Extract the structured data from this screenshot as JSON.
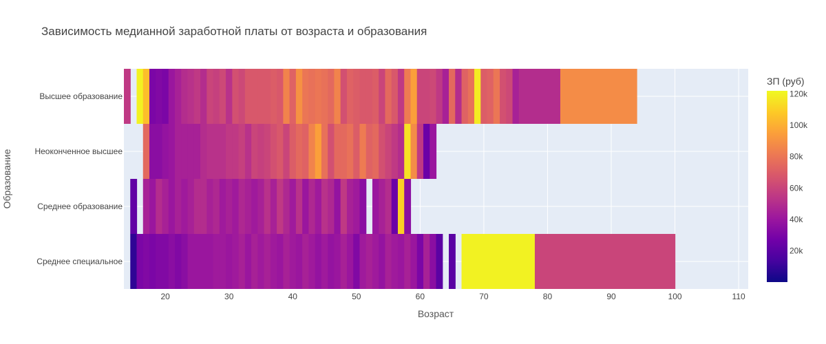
{
  "chart_data": {
    "type": "heatmap",
    "title": "Зависимость медианной заработной платы от возраста и образования",
    "xlabel": "Возраст",
    "ylabel": "Образование",
    "xlim": [
      13.5,
      111.5
    ],
    "x_ticks": [
      20,
      30,
      40,
      50,
      60,
      70,
      80,
      90,
      100,
      110
    ],
    "categories": [
      "Высшее образование",
      "Неоконченное высшее",
      "Среднее образование",
      "Среднее специальное"
    ],
    "colorbar": {
      "title": "ЗП (руб)",
      "min": 0,
      "max": 122000,
      "ticks": [
        {
          "value": 20000,
          "label": "20k"
        },
        {
          "value": 40000,
          "label": "40k"
        },
        {
          "value": 60000,
          "label": "60k"
        },
        {
          "value": 80000,
          "label": "80k"
        },
        {
          "value": 100000,
          "label": "100k"
        },
        {
          "value": 120000,
          "label": "120k"
        }
      ],
      "colorscale": [
        "#0d0887",
        "#46039f",
        "#7201a8",
        "#9c179e",
        "#bd3786",
        "#d8576b",
        "#ed7953",
        "#fb9f3a",
        "#fdca26",
        "#f0f921"
      ]
    },
    "grid": true,
    "series": [
      {
        "category": "Высшее образование",
        "x": [
          14,
          15,
          16,
          17,
          18,
          19,
          20,
          21,
          22,
          23,
          24,
          25,
          26,
          27,
          28,
          29,
          30,
          31,
          32,
          33,
          34,
          35,
          36,
          37,
          38,
          39,
          40,
          41,
          42,
          43,
          44,
          45,
          46,
          47,
          48,
          49,
          50,
          51,
          52,
          53,
          54,
          55,
          56,
          57,
          58,
          59,
          60,
          61,
          62,
          63,
          64,
          65,
          66,
          67,
          68,
          69,
          70,
          71,
          72,
          73,
          74,
          75,
          76,
          88
        ],
        "values": [
          55000,
          null,
          120000,
          105000,
          30000,
          32000,
          30000,
          40000,
          45000,
          50000,
          52000,
          55000,
          50000,
          60000,
          58000,
          62000,
          52000,
          65000,
          62000,
          68000,
          68000,
          68000,
          68000,
          70000,
          68000,
          85000,
          72000,
          90000,
          80000,
          78000,
          80000,
          78000,
          75000,
          85000,
          65000,
          72000,
          70000,
          68000,
          68000,
          70000,
          60000,
          75000,
          68000,
          55000,
          82000,
          95000,
          60000,
          60000,
          62000,
          55000,
          45000,
          75000,
          50000,
          72000,
          78000,
          118000,
          70000,
          72000,
          80000,
          65000,
          62000,
          45000,
          50000,
          88000
        ]
      },
      {
        "category": "Неоконченное высшее",
        "x": [
          17,
          18,
          19,
          20,
          21,
          22,
          23,
          24,
          25,
          26,
          27,
          28,
          29,
          30,
          31,
          32,
          33,
          34,
          35,
          36,
          37,
          38,
          39,
          40,
          41,
          42,
          43,
          44,
          45,
          46,
          47,
          48,
          49,
          50,
          51,
          52,
          53,
          54,
          55,
          56,
          57,
          58,
          59,
          60,
          61,
          62
        ],
        "values": [
          75000,
          35000,
          35000,
          38000,
          40000,
          45000,
          45000,
          45000,
          45000,
          50000,
          52000,
          52000,
          52000,
          55000,
          55000,
          58000,
          52000,
          60000,
          58000,
          60000,
          65000,
          68000,
          60000,
          70000,
          75000,
          72000,
          85000,
          95000,
          78000,
          65000,
          75000,
          75000,
          78000,
          70000,
          82000,
          72000,
          75000,
          65000,
          60000,
          55000,
          50000,
          115000,
          88000,
          55000,
          25000,
          40000
        ]
      },
      {
        "category": "Среднее образование",
        "x": [
          15,
          16,
          17,
          18,
          19,
          20,
          21,
          22,
          23,
          24,
          25,
          26,
          27,
          28,
          29,
          30,
          31,
          32,
          33,
          34,
          35,
          36,
          37,
          38,
          39,
          40,
          41,
          42,
          43,
          44,
          45,
          46,
          47,
          48,
          49,
          50,
          51,
          52,
          53,
          54,
          55,
          56,
          57,
          58
        ],
        "values": [
          22000,
          null,
          45000,
          40000,
          50000,
          45000,
          40000,
          45000,
          42000,
          45000,
          50000,
          50000,
          45000,
          48000,
          42000,
          45000,
          42000,
          48000,
          45000,
          42000,
          45000,
          52000,
          45000,
          55000,
          48000,
          42000,
          52000,
          40000,
          48000,
          42000,
          52000,
          48000,
          38000,
          55000,
          45000,
          42000,
          35000,
          null,
          40000,
          45000,
          50000,
          25000,
          110000,
          35000
        ]
      },
      {
        "category": "Среднее специальное",
        "x": [
          15,
          16,
          17,
          18,
          19,
          20,
          21,
          22,
          23,
          24,
          25,
          26,
          27,
          28,
          29,
          30,
          31,
          32,
          33,
          34,
          35,
          36,
          37,
          38,
          39,
          40,
          41,
          42,
          43,
          44,
          45,
          46,
          47,
          48,
          49,
          50,
          51,
          52,
          53,
          54,
          55,
          56,
          57,
          58,
          59,
          60,
          61,
          62,
          63,
          64,
          65,
          66,
          67,
          89
        ],
        "values": [
          8000,
          30000,
          32000,
          30000,
          32000,
          32000,
          35000,
          32000,
          35000,
          40000,
          40000,
          40000,
          40000,
          42000,
          42000,
          40000,
          42000,
          45000,
          40000,
          45000,
          42000,
          45000,
          42000,
          40000,
          45000,
          42000,
          40000,
          45000,
          42000,
          38000,
          42000,
          38000,
          40000,
          45000,
          40000,
          32000,
          42000,
          45000,
          42000,
          38000,
          45000,
          42000,
          40000,
          45000,
          40000,
          30000,
          45000,
          35000,
          20000,
          null,
          20000,
          null,
          120000,
          60000
        ]
      }
    ]
  }
}
